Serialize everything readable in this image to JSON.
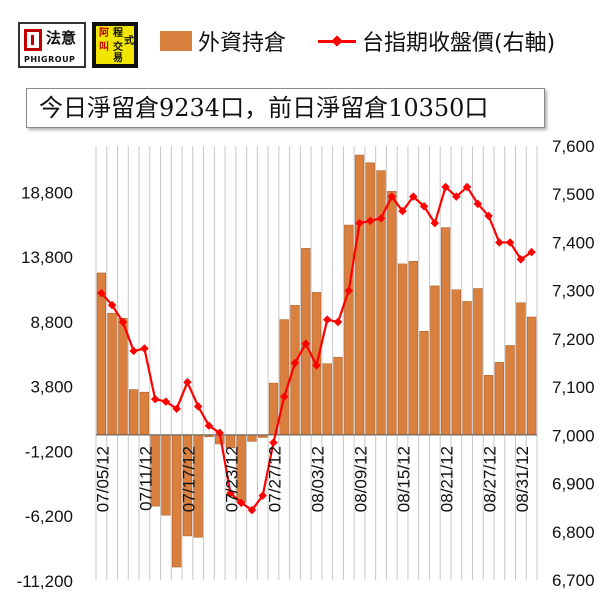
{
  "logos": {
    "left_text": "法意",
    "left_sub": "PHIGROUP",
    "right_chars": [
      "程",
      "式",
      "交",
      "易",
      "叫",
      "阿"
    ]
  },
  "subtitle": "今日淨留倉9234口，前日淨留倉10350口",
  "colors": {
    "bar": "#d9803f",
    "line": "#ff0000",
    "grid": "#c8c8c8"
  },
  "chart_data": {
    "type": "bar",
    "legend": [
      "外資持倉",
      "台指期收盤價(右軸)"
    ],
    "legend_position": "top",
    "grid": true,
    "y_left": {
      "ticks": [
        "18,800",
        "13,800",
        "8,800",
        "3,800",
        "-1,200",
        "-6,200",
        "-11,200"
      ],
      "tick_values": [
        18800,
        13800,
        8800,
        3800,
        -1200,
        -6200,
        -11200
      ],
      "range": [
        -11200,
        22300
      ]
    },
    "y_right": {
      "ticks": [
        "7,600",
        "7,500",
        "7,400",
        "7,300",
        "7,200",
        "7,100",
        "7,000",
        "6,900",
        "6,800",
        "6,700"
      ],
      "tick_values": [
        7600,
        7500,
        7400,
        7300,
        7200,
        7100,
        7000,
        6900,
        6800,
        6700
      ],
      "range": [
        6700,
        7600
      ]
    },
    "x_tick_labels": [
      "07/05/12",
      "07/11/12",
      "07/17/12",
      "07/23/12",
      "07/27/12",
      "08/03/12",
      "08/09/12",
      "08/15/12",
      "08/21/12",
      "08/27/12",
      "08/31/12"
    ],
    "x_tick_indices": [
      0,
      4,
      8,
      12,
      16,
      20,
      24,
      28,
      32,
      36,
      39
    ],
    "series": [
      {
        "name": "外資持倉",
        "values": [
          12500,
          9400,
          9000,
          3500,
          3300,
          -5500,
          -6200,
          -10200,
          -7800,
          -7900,
          -150,
          -700,
          -1000,
          -5200,
          -500,
          -200,
          4000,
          8900,
          10000,
          14400,
          11000,
          5500,
          6000,
          16200,
          21600,
          21000,
          20400,
          18800,
          13200,
          13400,
          8000,
          11500,
          16000,
          11200,
          10300,
          11300,
          4600,
          5600,
          6900,
          10200,
          9100
        ]
      },
      {
        "name": "台指期收盤價(右軸)",
        "values": [
          7295,
          7270,
          7235,
          7175,
          7180,
          7075,
          7070,
          7055,
          7110,
          7060,
          7020,
          7005,
          6880,
          6860,
          6845,
          6875,
          6985,
          7080,
          7150,
          7190,
          7145,
          7240,
          7235,
          7300,
          7440,
          7445,
          7450,
          7495,
          7465,
          7495,
          7475,
          7440,
          7515,
          7495,
          7515,
          7480,
          7455,
          7400,
          7400,
          7365,
          7380
        ]
      }
    ]
  }
}
